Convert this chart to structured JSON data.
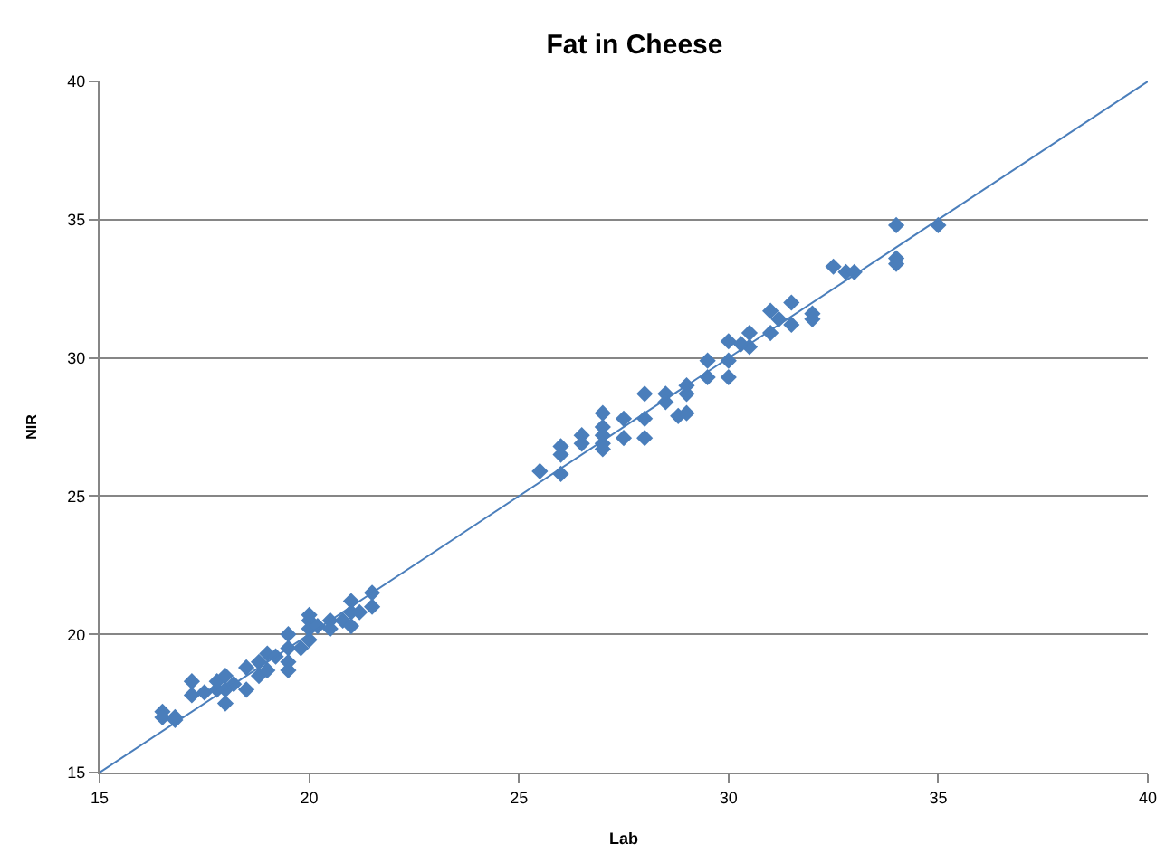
{
  "chart_data": {
    "type": "scatter",
    "title": "Fat in Cheese",
    "xlabel": "Lab",
    "ylabel": "NIR",
    "xlim": [
      15,
      40
    ],
    "xticks": [
      15,
      20,
      25,
      30,
      35,
      40
    ],
    "ylim": [
      15,
      40
    ],
    "yticks": [
      15,
      20,
      25,
      30,
      35,
      40
    ],
    "grid": "y",
    "marker": "diamond",
    "series": [
      {
        "color": "#4a7ebb",
        "x": [
          16.5,
          16.5,
          16.8,
          16.8,
          17.2,
          17.2,
          17.5,
          17.8,
          17.8,
          18,
          18,
          18,
          18.2,
          18.5,
          18.5,
          18.8,
          18.8,
          19,
          19,
          19.2,
          19.5,
          19.5,
          19.5,
          19.5,
          19.8,
          20,
          20,
          20,
          20,
          20.2,
          20.5,
          20.5,
          20.8,
          21,
          21,
          21,
          21.2,
          21.5,
          21.5,
          25.5,
          26,
          26,
          26,
          26.5,
          26.5,
          27,
          27,
          27,
          27,
          27,
          27.5,
          27.5,
          28,
          28,
          28,
          28.5,
          28.5,
          28.8,
          29,
          29,
          29,
          29.5,
          29.5,
          30,
          30,
          30,
          30.3,
          30.5,
          30.5,
          31,
          31,
          31.2,
          31.5,
          31.5,
          32,
          32,
          32.5,
          32.8,
          33,
          34,
          34,
          34,
          35
        ],
        "values": [
          17.2,
          17.0,
          17.0,
          16.9,
          17.8,
          18.3,
          17.9,
          18.0,
          18.3,
          18.5,
          18.0,
          17.5,
          18.2,
          18.0,
          18.8,
          18.5,
          19.0,
          19.3,
          18.7,
          19.2,
          20.0,
          19.5,
          19.0,
          18.7,
          19.5,
          20.5,
          20.2,
          19.8,
          20.7,
          20.3,
          20.5,
          20.2,
          20.5,
          21.2,
          20.8,
          20.3,
          20.8,
          21.5,
          21.0,
          25.9,
          26.8,
          26.5,
          25.8,
          27.2,
          26.9,
          28.0,
          27.5,
          27.2,
          26.9,
          26.7,
          27.8,
          27.1,
          28.7,
          27.8,
          27.1,
          28.7,
          28.4,
          27.9,
          29.0,
          28.7,
          28.0,
          29.9,
          29.3,
          30.6,
          29.9,
          29.3,
          30.5,
          30.9,
          30.4,
          31.7,
          30.9,
          31.4,
          32.0,
          31.2,
          31.6,
          31.4,
          33.3,
          33.1,
          33.1,
          34.8,
          33.6,
          33.4,
          34.8
        ]
      },
      {
        "type": "line",
        "color": "#4a7ebb",
        "marker": "none",
        "line_style": "solid",
        "x": [
          15,
          40
        ],
        "values": [
          15,
          40
        ]
      }
    ]
  }
}
